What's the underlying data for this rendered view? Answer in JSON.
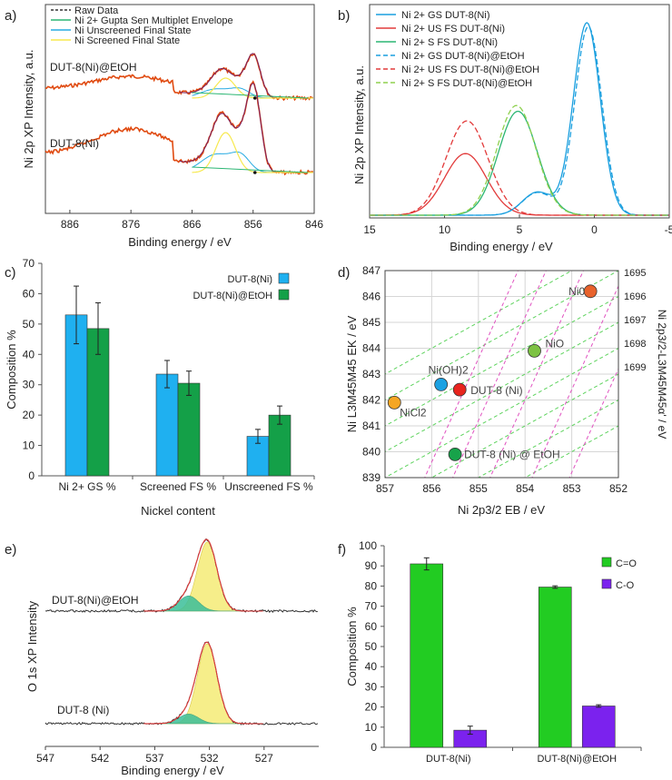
{
  "figure": "Six-panel XPS figure",
  "chart_data": [
    {
      "panel": "a)",
      "type": "line",
      "xlabel": "Binding energy / eV",
      "ylabel": "Ni 2p XP Intensity, a.u.",
      "xlim": [
        890,
        846
      ],
      "xticks": [
        886,
        876,
        866,
        856,
        846
      ],
      "legend": [
        {
          "name": "Raw Data",
          "color": "#333333",
          "dash": true
        },
        {
          "name": "Ni 2+ Gupta Sen Multiplet Envelope",
          "color": "#2bb673",
          "dash": false
        },
        {
          "name": "Ni Unscreened Final State",
          "color": "#29abe2",
          "dash": false
        },
        {
          "name": "Ni Screened Final State",
          "color": "#f7e94f",
          "dash": false
        }
      ],
      "sample_labels": [
        "DUT-8(Ni)@EtOH",
        "DUT-8(Ni)"
      ],
      "peaks": {
        "main": 855.9,
        "shoulder": 861
      }
    },
    {
      "panel": "b)",
      "type": "line",
      "xlabel": "Binding energy / eV",
      "ylabel": "Ni 2p XP Intensity, a.u.",
      "xlim": [
        15,
        -5
      ],
      "xticks": [
        15,
        10,
        5,
        0,
        -5
      ],
      "series": [
        {
          "name": "Ni 2+ GS DUT-8(Ni)",
          "color": "#1a9fdf",
          "dash": false,
          "center": 0.5,
          "height": 1.0
        },
        {
          "name": "Ni 2+ US FS DUT-8(Ni)",
          "color": "#e23b3b",
          "dash": false,
          "center": 8.6,
          "height": 0.32
        },
        {
          "name": "Ni 2+ S FS DUT-8(Ni)",
          "color": "#2bb673",
          "dash": false,
          "center": 5.1,
          "height": 0.54
        },
        {
          "name": "Ni 2+ GS DUT-8(Ni)@EtOH",
          "color": "#1a9fdf",
          "dash": true,
          "center": 0.4,
          "height": 0.98
        },
        {
          "name": "Ni 2+ US FS DUT-8(Ni)@EtOH",
          "color": "#e23b3b",
          "dash": true,
          "center": 8.5,
          "height": 0.49
        },
        {
          "name": "Ni 2+ S FS DUT-8(Ni)@EtOH",
          "color": "#8fd14f",
          "dash": true,
          "center": 5.2,
          "height": 0.57
        }
      ]
    },
    {
      "panel": "c)",
      "type": "bar",
      "title": "",
      "xlabel": "Nickel content",
      "ylabel": "Composition %",
      "ylim": [
        0,
        70
      ],
      "yticks": [
        0,
        10,
        20,
        30,
        40,
        50,
        60,
        70
      ],
      "categories": [
        "Ni 2+ GS %",
        "Screened FS %",
        "Unscreened FS %"
      ],
      "series": [
        {
          "name": "DUT-8(Ni)",
          "color": "#1fb0f0",
          "values": [
            53,
            33.5,
            13
          ],
          "errors": [
            9.5,
            4.5,
            2.3
          ]
        },
        {
          "name": "DUT-8(Ni)@EtOH",
          "color": "#14a048",
          "values": [
            48.5,
            30.5,
            20
          ],
          "errors": [
            8.5,
            4,
            3
          ]
        }
      ]
    },
    {
      "panel": "d)",
      "type": "scatter",
      "xlabel": "Ni 2p3/2 EB / eV",
      "ylabel": "Ni L3M45M45 EK / eV",
      "y2label": "Ni 2p3/2-L3M45M45α' / eV",
      "xlim": [
        857,
        852
      ],
      "ylim": [
        839,
        847
      ],
      "xticks": [
        857,
        856,
        855,
        854,
        853,
        852
      ],
      "yticks": [
        839,
        840,
        841,
        842,
        843,
        844,
        845,
        846,
        847
      ],
      "y2ticks": [
        1695,
        1696,
        1697,
        1698,
        1699
      ],
      "points": [
        {
          "label": "Ni0",
          "x": 852.6,
          "y": 846.2,
          "color": "#e8622c"
        },
        {
          "label": "NiO",
          "x": 853.8,
          "y": 843.9,
          "color": "#7cc242"
        },
        {
          "label": "Ni(OH)2",
          "x": 855.8,
          "y": 842.6,
          "color": "#1ba1e2"
        },
        {
          "label": "DUT-8 (Ni)",
          "x": 855.4,
          "y": 842.4,
          "color": "#e8251e"
        },
        {
          "label": "NiCl2",
          "x": 856.8,
          "y": 841.9,
          "color": "#f5a623"
        },
        {
          "label": "DUT-8 (Ni) @ EtOH",
          "x": 855.5,
          "y": 839.9,
          "color": "#17a34a"
        }
      ]
    },
    {
      "panel": "e)",
      "type": "line",
      "xlabel": "Binding energy / eV",
      "ylabel": "O 1s XP Intensity",
      "xlim": [
        547,
        522
      ],
      "xticks": [
        547,
        542,
        537,
        532,
        527
      ],
      "sample_labels": [
        "DUT-8(Ni)@EtOH",
        "DUT-8 (Ni)"
      ],
      "peaks": {
        "C=O": 532.2,
        "C-O": 533.8
      }
    },
    {
      "panel": "f)",
      "type": "bar",
      "ylabel": "Composition %",
      "ylim": [
        0,
        100
      ],
      "yticks": [
        0,
        10,
        20,
        30,
        40,
        50,
        60,
        70,
        80,
        90,
        100
      ],
      "categories": [
        "DUT-8(Ni)",
        "DUT-8(Ni)@EtOH"
      ],
      "series": [
        {
          "name": "C=O",
          "color": "#22cc22",
          "values": [
            91,
            79.5
          ],
          "errors": [
            3,
            0.6
          ]
        },
        {
          "name": "C-O",
          "color": "#7b22ee",
          "values": [
            8.5,
            20.5
          ],
          "errors": [
            2,
            0.6
          ]
        }
      ]
    }
  ]
}
